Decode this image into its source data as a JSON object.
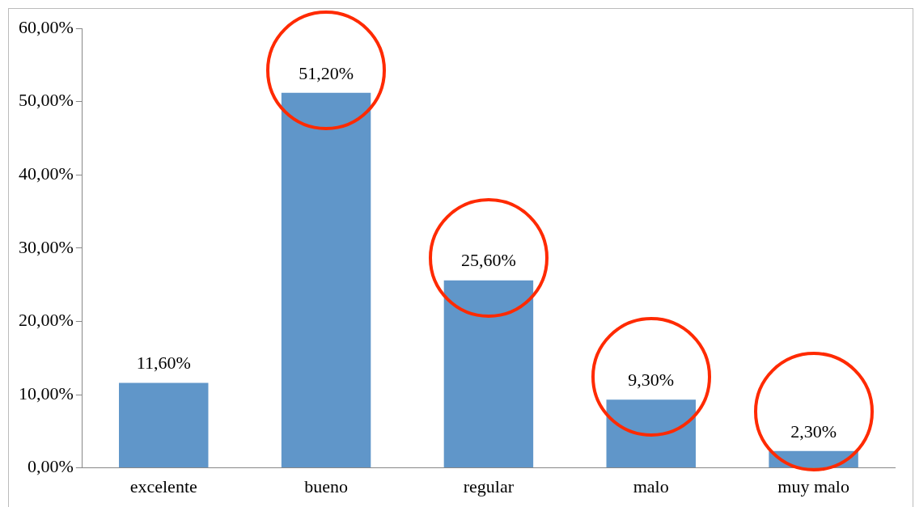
{
  "chart_data": {
    "type": "bar",
    "categories": [
      "excelente",
      "bueno",
      "regular",
      "malo",
      "muy malo"
    ],
    "values": [
      11.6,
      51.2,
      25.6,
      9.3,
      2.3
    ],
    "value_labels": [
      "11,60%",
      "51,20%",
      "25,60%",
      "9,30%",
      "2,30%"
    ],
    "color": "#6096c9",
    "ylim": [
      0,
      60
    ],
    "yticks": [
      {
        "value": 0,
        "label": "0,00%"
      },
      {
        "value": 10,
        "label": "10,00%"
      },
      {
        "value": 20,
        "label": "20,00%"
      },
      {
        "value": 30,
        "label": "30,00%"
      },
      {
        "value": 40,
        "label": "40,00%"
      },
      {
        "value": 50,
        "label": "50,00%"
      },
      {
        "value": 60,
        "label": "60,00%"
      }
    ],
    "grid": false,
    "legend": false
  }
}
